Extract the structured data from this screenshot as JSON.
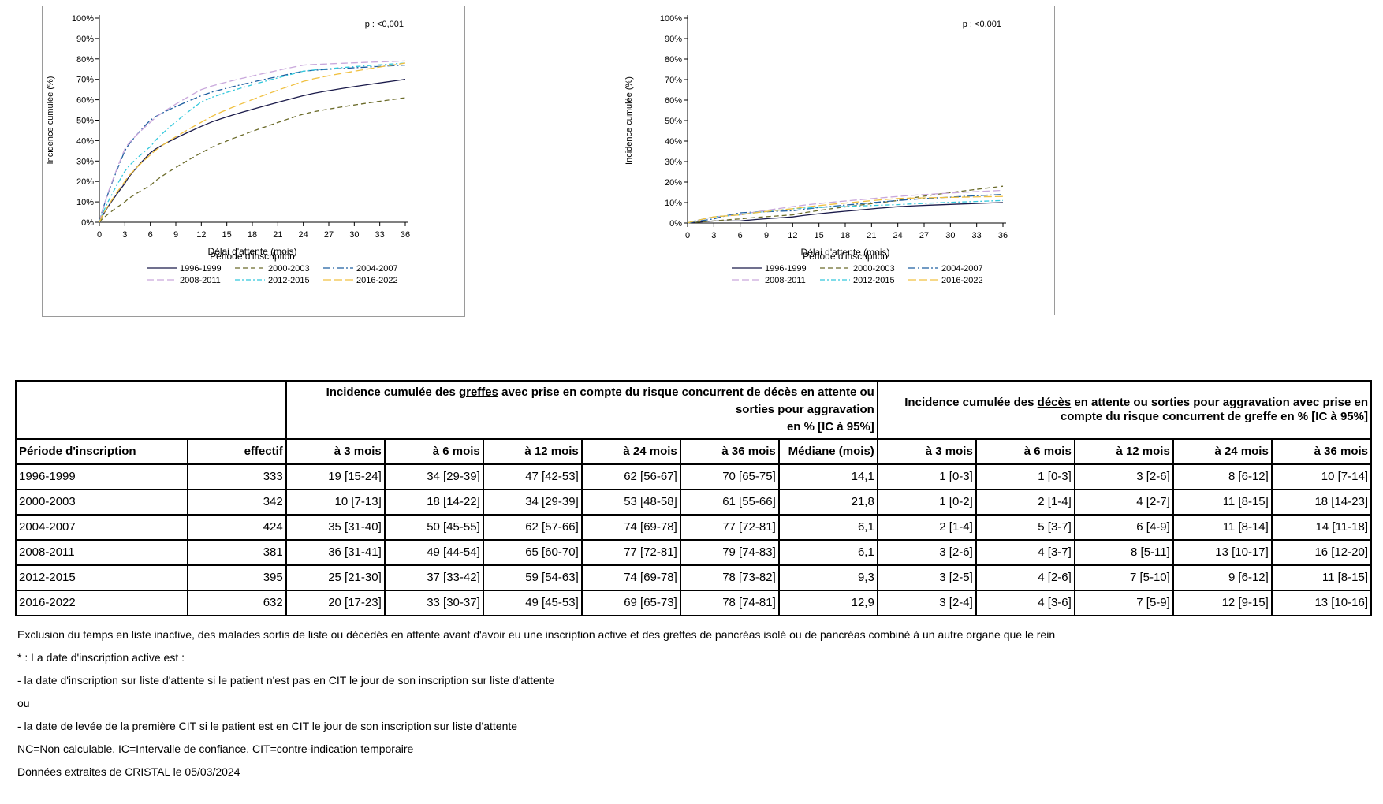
{
  "charts": [
    {
      "id": "greffes",
      "pvalue": "p : <0,001",
      "ylabel": "Incidence cumulée (%)",
      "xlabel": "Délai d'attente (mois)",
      "legend_title": "Période d'inscription",
      "yticks": [
        "0%",
        "10%",
        "20%",
        "30%",
        "40%",
        "50%",
        "60%",
        "70%",
        "80%",
        "90%",
        "100%"
      ],
      "xticks": [
        "0",
        "3",
        "6",
        "9",
        "12",
        "15",
        "18",
        "21",
        "24",
        "27",
        "30",
        "33",
        "36"
      ]
    },
    {
      "id": "deces",
      "pvalue": "p : <0,001",
      "ylabel": "Incidence cumulée (%)",
      "xlabel": "Délai d'attente (mois)",
      "legend_title": "Période d'inscription",
      "yticks": [
        "0%",
        "10%",
        "20%",
        "30%",
        "40%",
        "50%",
        "60%",
        "70%",
        "80%",
        "90%",
        "100%"
      ],
      "xticks": [
        "0",
        "3",
        "6",
        "9",
        "12",
        "15",
        "18",
        "21",
        "24",
        "27",
        "30",
        "33",
        "36"
      ]
    }
  ],
  "chart_data": [
    {
      "type": "line",
      "xlabel": "Délai d'attente (mois)",
      "ylabel": "Incidence cumulée (%)",
      "xlim": [
        0,
        36
      ],
      "ylim": [
        0,
        100
      ],
      "x": [
        0,
        3,
        6,
        12,
        24,
        36
      ],
      "legend_placement": "bottom",
      "series": [
        {
          "name": "1996-1999",
          "color": "#1a1a4a",
          "dash": "",
          "values": [
            0,
            19,
            34,
            47,
            62,
            70
          ]
        },
        {
          "name": "2000-2003",
          "color": "#6b6b2a",
          "dash": "6,4",
          "values": [
            0,
            10,
            18,
            34,
            53,
            61
          ]
        },
        {
          "name": "2004-2007",
          "color": "#1f5fa0",
          "dash": "9,3,2,3",
          "values": [
            0,
            35,
            50,
            62,
            74,
            77
          ]
        },
        {
          "name": "2008-2011",
          "color": "#c9a8dc",
          "dash": "9,4",
          "values": [
            0,
            36,
            49,
            65,
            77,
            79
          ]
        },
        {
          "name": "2012-2015",
          "color": "#33c8dc",
          "dash": "6,3,2,3",
          "values": [
            0,
            25,
            37,
            59,
            74,
            78
          ]
        },
        {
          "name": "2016-2022",
          "color": "#f0c040",
          "dash": "10,4",
          "values": [
            0,
            20,
            33,
            49,
            69,
            78
          ]
        }
      ]
    },
    {
      "type": "line",
      "xlabel": "Délai d'attente (mois)",
      "ylabel": "Incidence cumulée (%)",
      "xlim": [
        0,
        36
      ],
      "ylim": [
        0,
        100
      ],
      "x": [
        0,
        3,
        6,
        12,
        24,
        36
      ],
      "legend_placement": "bottom",
      "series": [
        {
          "name": "1996-1999",
          "color": "#1a1a4a",
          "dash": "",
          "values": [
            0,
            1,
            1,
            3,
            8,
            10
          ]
        },
        {
          "name": "2000-2003",
          "color": "#6b6b2a",
          "dash": "6,4",
          "values": [
            0,
            1,
            2,
            4,
            11,
            18
          ]
        },
        {
          "name": "2004-2007",
          "color": "#1f5fa0",
          "dash": "9,3,2,3",
          "values": [
            0,
            2,
            5,
            6,
            11,
            14
          ]
        },
        {
          "name": "2008-2011",
          "color": "#c9a8dc",
          "dash": "9,4",
          "values": [
            0,
            3,
            4,
            8,
            13,
            16
          ]
        },
        {
          "name": "2012-2015",
          "color": "#33c8dc",
          "dash": "6,3,2,3",
          "values": [
            0,
            3,
            4,
            7,
            9,
            11
          ]
        },
        {
          "name": "2016-2022",
          "color": "#f0c040",
          "dash": "10,4",
          "values": [
            0,
            3,
            4,
            7,
            12,
            13
          ]
        }
      ]
    }
  ],
  "table": {
    "group1": {
      "pre": "Incidence cumulée des ",
      "u": "greffes",
      "post": " avec prise en compte du risque concurrent de décès en attente ou sorties pour aggravation",
      "unit": "en % [IC à 95%]"
    },
    "group2": {
      "pre": "Incidence cumulée des ",
      "u": "décès",
      "post": " en attente ou sorties pour aggravation avec prise en compte du risque concurrent de greffe en % [IC à 95%]"
    },
    "col_periode": "Période d'inscription",
    "col_effectif": "effectif",
    "cols_g": [
      "à 3 mois",
      "à 6 mois",
      "à 12 mois",
      "à 24 mois",
      "à 36 mois",
      "Médiane (mois)"
    ],
    "cols_d": [
      "à 3 mois",
      "à 6 mois",
      "à 12 mois",
      "à 24 mois",
      "à 36 mois"
    ],
    "rows": [
      {
        "p": "1996-1999",
        "n": "333",
        "g": [
          "19 [15-24]",
          "34 [29-39]",
          "47 [42-53]",
          "62 [56-67]",
          "70 [65-75]",
          "14,1"
        ],
        "d": [
          "1 [0-3]",
          "1 [0-3]",
          "3 [2-6]",
          "8 [6-12]",
          "10 [7-14]"
        ]
      },
      {
        "p": "2000-2003",
        "n": "342",
        "g": [
          "10 [7-13]",
          "18 [14-22]",
          "34 [29-39]",
          "53 [48-58]",
          "61 [55-66]",
          "21,8"
        ],
        "d": [
          "1 [0-2]",
          "2 [1-4]",
          "4 [2-7]",
          "11 [8-15]",
          "18 [14-23]"
        ]
      },
      {
        "p": "2004-2007",
        "n": "424",
        "g": [
          "35 [31-40]",
          "50 [45-55]",
          "62 [57-66]",
          "74 [69-78]",
          "77 [72-81]",
          "6,1"
        ],
        "d": [
          "2 [1-4]",
          "5 [3-7]",
          "6 [4-9]",
          "11 [8-14]",
          "14 [11-18]"
        ]
      },
      {
        "p": "2008-2011",
        "n": "381",
        "g": [
          "36 [31-41]",
          "49 [44-54]",
          "65 [60-70]",
          "77 [72-81]",
          "79 [74-83]",
          "6,1"
        ],
        "d": [
          "3 [2-6]",
          "4 [3-7]",
          "8 [5-11]",
          "13 [10-17]",
          "16 [12-20]"
        ]
      },
      {
        "p": "2012-2015",
        "n": "395",
        "g": [
          "25 [21-30]",
          "37 [33-42]",
          "59 [54-63]",
          "74 [69-78]",
          "78 [73-82]",
          "9,3"
        ],
        "d": [
          "3 [2-5]",
          "4 [2-6]",
          "7 [5-10]",
          "9 [6-12]",
          "11 [8-15]"
        ]
      },
      {
        "p": "2016-2022",
        "n": "632",
        "g": [
          "20 [17-23]",
          "33 [30-37]",
          "49 [45-53]",
          "69 [65-73]",
          "78 [74-81]",
          "12,9"
        ],
        "d": [
          "3 [2-4]",
          "4 [3-6]",
          "7 [5-9]",
          "12 [9-15]",
          "13 [10-16]"
        ]
      }
    ]
  },
  "notes": [
    "Exclusion du temps en liste inactive, des malades sortis de liste ou décédés en attente avant d'avoir eu une inscription active et des greffes de pancréas isolé ou de pancréas combiné à un autre organe que le rein",
    "* : La date d'inscription active est :",
    "- la date d'inscription sur liste d'attente si le patient n'est pas en CIT le jour de son inscription sur liste d'attente",
    "ou",
    "- la date de levée de la première CIT si le patient est en CIT le jour de son inscription sur liste d'attente",
    "NC=Non calculable, IC=Intervalle de confiance, CIT=contre-indication temporaire",
    "Données extraites de CRISTAL le 05/03/2024"
  ]
}
